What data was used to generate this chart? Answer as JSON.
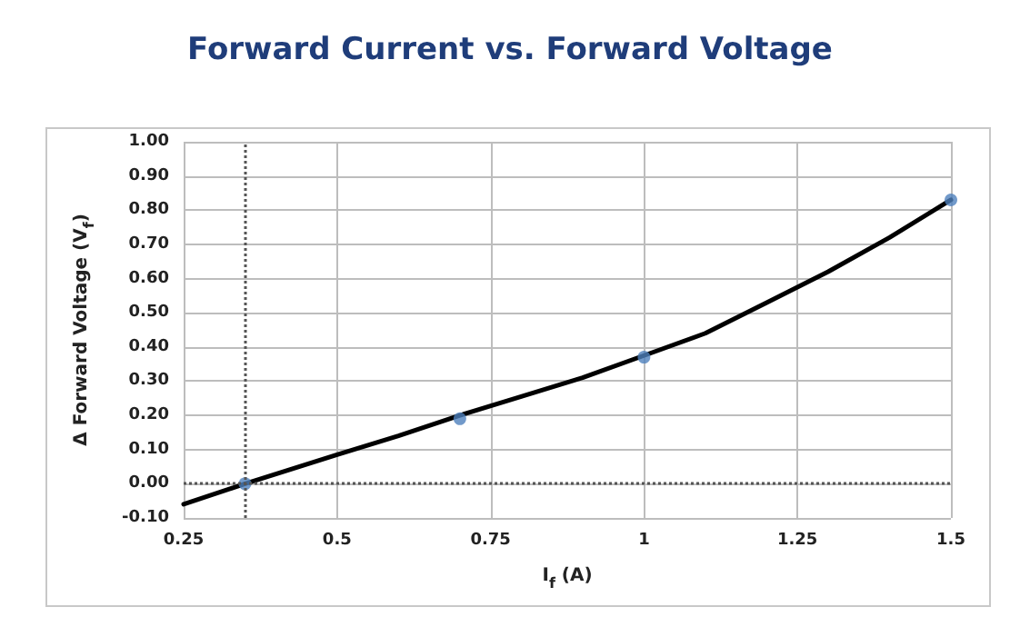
{
  "chart_data": {
    "type": "scatter",
    "title": "Forward Current vs. Forward Voltage",
    "xlabel": "I$_{f}$ (A)",
    "ylabel": "Δ Forward Voltage (V$_{f}$)",
    "series": [
      {
        "type": "line",
        "color": "#000000",
        "marker": "none",
        "line_style": "solid",
        "x": [
          0.25,
          0.35,
          0.5,
          0.6,
          0.7,
          0.8,
          0.9,
          1.0,
          1.1,
          1.2,
          1.25,
          1.3,
          1.4,
          1.5
        ],
        "values": [
          -0.06,
          0.0,
          0.085,
          0.14,
          0.2,
          0.255,
          0.31,
          0.375,
          0.44,
          0.53,
          0.575,
          0.62,
          0.72,
          0.83
        ]
      },
      {
        "color": "#4f81bd",
        "marker": "circle",
        "x": [
          0.35,
          0.7,
          1.0,
          1.5
        ],
        "values": [
          0.0,
          0.19,
          0.37,
          0.83
        ]
      }
    ],
    "xlim": [
      0.25,
      1.5
    ],
    "xticks": [
      0.25,
      0.5,
      0.75,
      1,
      1.25,
      1.5
    ],
    "ylim": [
      -0.1,
      1.0
    ],
    "yticks": [
      {
        "value": -0.1,
        "label": "-0.10"
      },
      {
        "value": 0,
        "label": "0.00"
      },
      {
        "value": 0.1,
        "label": "0.10"
      },
      {
        "value": 0.2,
        "label": "0.20"
      },
      {
        "value": 0.3,
        "label": "0.30"
      },
      {
        "value": 0.4,
        "label": "0.40"
      },
      {
        "value": 0.5,
        "label": "0.50"
      },
      {
        "value": 0.6,
        "label": "0.60"
      },
      {
        "value": 0.7,
        "label": "0.70"
      },
      {
        "value": 0.8,
        "label": "0.80"
      },
      {
        "value": 0.9,
        "label": "0.90"
      },
      {
        "value": 1.0,
        "label": "1.00"
      }
    ],
    "ref_lines": [
      {
        "axis": "x",
        "value": 0.35,
        "color": "#555555",
        "line_style": "dotted"
      },
      {
        "axis": "y",
        "value": 0,
        "color": "#555555",
        "line_style": "dotted"
      }
    ],
    "grid": true
  }
}
